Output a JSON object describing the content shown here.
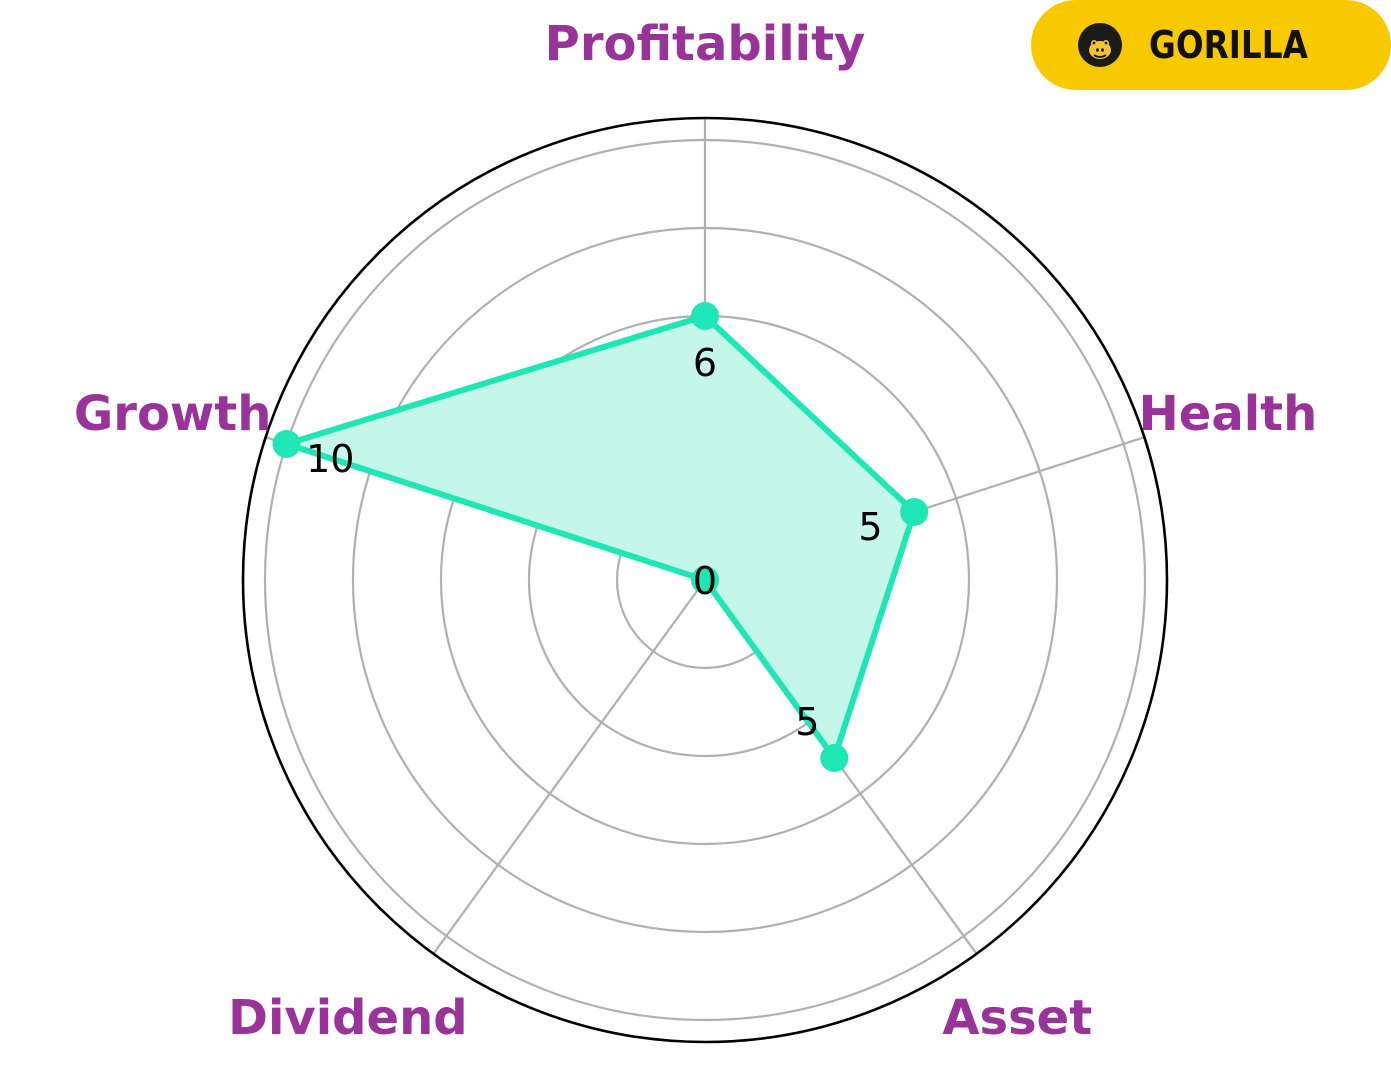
{
  "brand": {
    "name": "GORILLA",
    "logo_icon": "gorilla-face-icon",
    "badge_color": "#F9C900",
    "text_color": "#111111"
  },
  "chart_data": {
    "type": "radar",
    "axes": [
      "Profitability",
      "Health",
      "Asset",
      "Dividend",
      "Growth"
    ],
    "values": [
      6,
      5,
      5,
      0,
      10
    ],
    "value_labels": [
      "6",
      "5",
      "5",
      "0",
      "10"
    ],
    "rlim": [
      0,
      10
    ],
    "grid": true,
    "series_color": "#1EE6B4",
    "fill_color": "#C4F7E9",
    "label_color": "#993399",
    "grid_color": "#B0B0B0",
    "frame_color": "#000000"
  }
}
